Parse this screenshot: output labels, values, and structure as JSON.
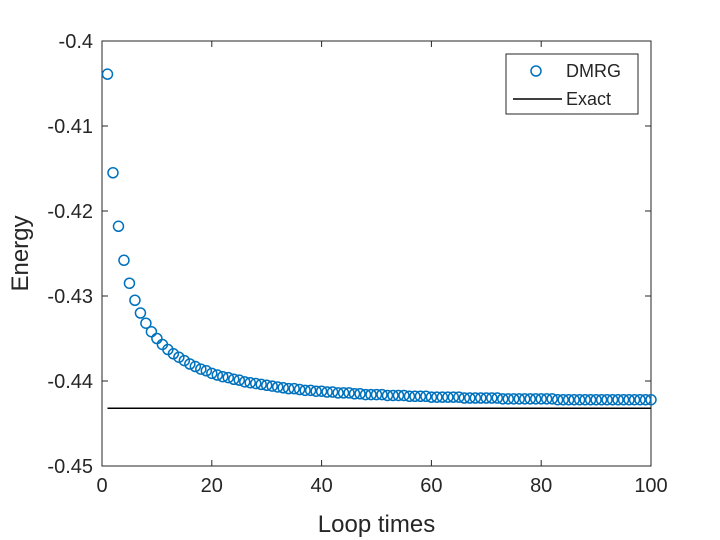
{
  "chart_data": {
    "type": "scatter",
    "title": "",
    "xlabel": "Loop times",
    "ylabel": "Energy",
    "xlim": [
      0,
      100
    ],
    "ylim": [
      -0.45,
      -0.4
    ],
    "xticks": [
      "0",
      "20",
      "40",
      "60",
      "80",
      "100"
    ],
    "yticks": [
      "-0.4",
      "-0.41",
      "-0.42",
      "-0.43",
      "-0.44",
      "-0.45"
    ],
    "grid": false,
    "legend_position": "top-right",
    "series": [
      {
        "name": "DMRG",
        "style": "circle-markers",
        "color": "#0072BD",
        "x": [
          1,
          2,
          3,
          4,
          5,
          6,
          7,
          8,
          9,
          10,
          11,
          12,
          13,
          14,
          15,
          16,
          17,
          18,
          19,
          20,
          21,
          22,
          23,
          24,
          25,
          26,
          27,
          28,
          29,
          30,
          31,
          32,
          33,
          34,
          35,
          36,
          37,
          38,
          39,
          40,
          41,
          42,
          43,
          44,
          45,
          46,
          47,
          48,
          49,
          50,
          51,
          52,
          53,
          54,
          55,
          56,
          57,
          58,
          59,
          60,
          61,
          62,
          63,
          64,
          65,
          66,
          67,
          68,
          69,
          70,
          71,
          72,
          73,
          74,
          75,
          76,
          77,
          78,
          79,
          80,
          81,
          82,
          83,
          84,
          85,
          86,
          87,
          88,
          89,
          90,
          91,
          92,
          93,
          94,
          95,
          96,
          97,
          98,
          99,
          100
        ],
        "y": [
          -0.4039,
          -0.4155,
          -0.4218,
          -0.4258,
          -0.4285,
          -0.4305,
          -0.432,
          -0.4332,
          -0.4342,
          -0.435,
          -0.4357,
          -0.4363,
          -0.4368,
          -0.4372,
          -0.4376,
          -0.438,
          -0.4383,
          -0.4386,
          -0.4388,
          -0.4391,
          -0.4393,
          -0.4395,
          -0.4396,
          -0.4398,
          -0.4399,
          -0.4401,
          -0.4402,
          -0.4403,
          -0.4404,
          -0.4405,
          -0.4406,
          -0.4407,
          -0.4408,
          -0.4409,
          -0.4409,
          -0.441,
          -0.4411,
          -0.4411,
          -0.4412,
          -0.4412,
          -0.4413,
          -0.4413,
          -0.4414,
          -0.4414,
          -0.4414,
          -0.4415,
          -0.4415,
          -0.4416,
          -0.4416,
          -0.4416,
          -0.4416,
          -0.4417,
          -0.4417,
          -0.4417,
          -0.4417,
          -0.4418,
          -0.4418,
          -0.4418,
          -0.4418,
          -0.4419,
          -0.4419,
          -0.4419,
          -0.4419,
          -0.4419,
          -0.4419,
          -0.442,
          -0.442,
          -0.442,
          -0.442,
          -0.442,
          -0.442,
          -0.442,
          -0.4421,
          -0.4421,
          -0.4421,
          -0.4421,
          -0.4421,
          -0.4421,
          -0.4421,
          -0.4421,
          -0.4421,
          -0.4421,
          -0.4422,
          -0.4422,
          -0.4422,
          -0.4422,
          -0.4422,
          -0.4422,
          -0.4422,
          -0.4422,
          -0.4422,
          -0.4422,
          -0.4422,
          -0.4422,
          -0.4422,
          -0.4422,
          -0.4422,
          -0.4422,
          -0.4422,
          -0.4422
        ]
      },
      {
        "name": "Exact",
        "style": "line",
        "color": "#000000",
        "x": [
          1,
          100
        ],
        "y": [
          -0.4432,
          -0.4432
        ]
      }
    ]
  }
}
